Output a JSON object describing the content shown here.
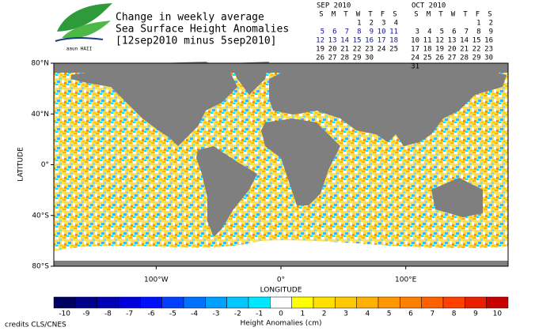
{
  "header": {
    "title_lines": [
      "Change in weekly average",
      "Sea Surface Height Anomalies",
      "[12sep2010 minus 5sep2010]"
    ],
    "logo_text": "aaun HAII"
  },
  "calendars": [
    {
      "title": "SEP 2010",
      "weekdays": [
        "S",
        "M",
        "T",
        "W",
        "T",
        "F",
        "S"
      ],
      "weeks": [
        {
          "days": [
            null,
            null,
            null,
            1,
            2,
            3,
            4
          ],
          "color": "#000000"
        },
        {
          "days": [
            5,
            6,
            7,
            8,
            9,
            10,
            11
          ],
          "color": "#1010a0"
        },
        {
          "days": [
            12,
            13,
            14,
            15,
            16,
            17,
            18
          ],
          "color": "#1010a0"
        },
        {
          "days": [
            19,
            20,
            21,
            22,
            23,
            24,
            25
          ],
          "color": "#000000"
        },
        {
          "days": [
            26,
            27,
            28,
            29,
            30,
            null,
            null
          ],
          "color": "#000000"
        }
      ]
    },
    {
      "title": "OCT 2010",
      "weekdays": [
        "S",
        "M",
        "T",
        "W",
        "T",
        "F",
        "S"
      ],
      "weeks": [
        {
          "days": [
            null,
            null,
            null,
            null,
            null,
            1,
            2
          ],
          "color": "#000000"
        },
        {
          "days": [
            3,
            4,
            5,
            6,
            7,
            8,
            9
          ],
          "color": "#000000"
        },
        {
          "days": [
            10,
            11,
            12,
            13,
            14,
            15,
            16
          ],
          "color": "#000000"
        },
        {
          "days": [
            17,
            18,
            19,
            20,
            21,
            22,
            23
          ],
          "color": "#000000"
        },
        {
          "days": [
            24,
            25,
            26,
            27,
            28,
            29,
            30
          ],
          "color": "#000000"
        },
        {
          "days": [
            31,
            null,
            null,
            null,
            null,
            null,
            null
          ],
          "color": "#000000"
        }
      ]
    }
  ],
  "map": {
    "xlabel": "LONGITUDE",
    "ylabel": "LATITUDE",
    "xlim": [
      -182,
      182
    ],
    "ylim": [
      -80,
      80
    ],
    "xticks": [
      {
        "value": -100,
        "label": "100°W"
      },
      {
        "value": 0,
        "label": "0°"
      },
      {
        "value": 100,
        "label": "100°E"
      }
    ],
    "yticks": [
      {
        "value": 80,
        "label": "80°N"
      },
      {
        "value": 40,
        "label": "40°N"
      },
      {
        "value": 0,
        "label": "0°"
      },
      {
        "value": -40,
        "label": "40°S"
      },
      {
        "value": -80,
        "label": "80°S"
      }
    ]
  },
  "colorbar": {
    "title": "Height Anomalies (cm)",
    "labels": [
      -10,
      -9,
      -8,
      -7,
      -6,
      -5,
      -4,
      -3,
      -2,
      -1,
      0,
      1,
      2,
      3,
      4,
      5,
      6,
      7,
      8,
      9,
      10
    ],
    "colors": [
      "#000060",
      "#00008b",
      "#0000b4",
      "#0000dc",
      "#0010ff",
      "#0040ff",
      "#0070ff",
      "#00a0ff",
      "#00c8ff",
      "#00e8ff",
      "#ffffff",
      "#ffff00",
      "#ffe000",
      "#ffc800",
      "#ffb000",
      "#ff9800",
      "#ff8000",
      "#ff6000",
      "#ff4000",
      "#e82000",
      "#c80000"
    ]
  },
  "credits": "credits CLS/CNES"
}
